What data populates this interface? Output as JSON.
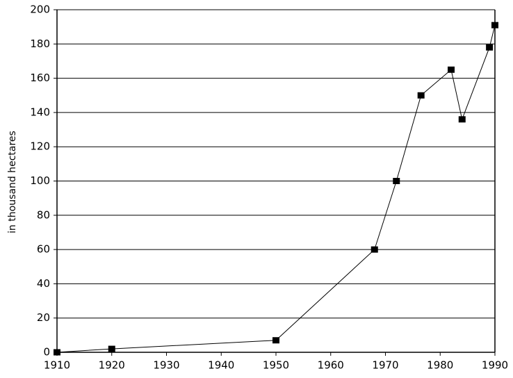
{
  "chart_data": {
    "type": "line",
    "y_label": "in thousand hectares",
    "x": [
      1910,
      1920,
      1950,
      1968,
      1972,
      1976.5,
      1982,
      1984,
      1989,
      1990
    ],
    "series": [
      {
        "color": "#000000",
        "values": [
          0,
          2,
          7,
          60,
          100,
          150,
          165,
          136,
          178,
          191
        ]
      }
    ],
    "xlim": [
      1910,
      1990
    ],
    "xticks": [
      1910,
      1920,
      1930,
      1940,
      1950,
      1960,
      1970,
      1980,
      1990
    ],
    "ylim": [
      0,
      200
    ],
    "yticks": [
      0,
      20,
      40,
      60,
      80,
      100,
      120,
      140,
      160,
      180,
      200
    ],
    "grid": true
  }
}
